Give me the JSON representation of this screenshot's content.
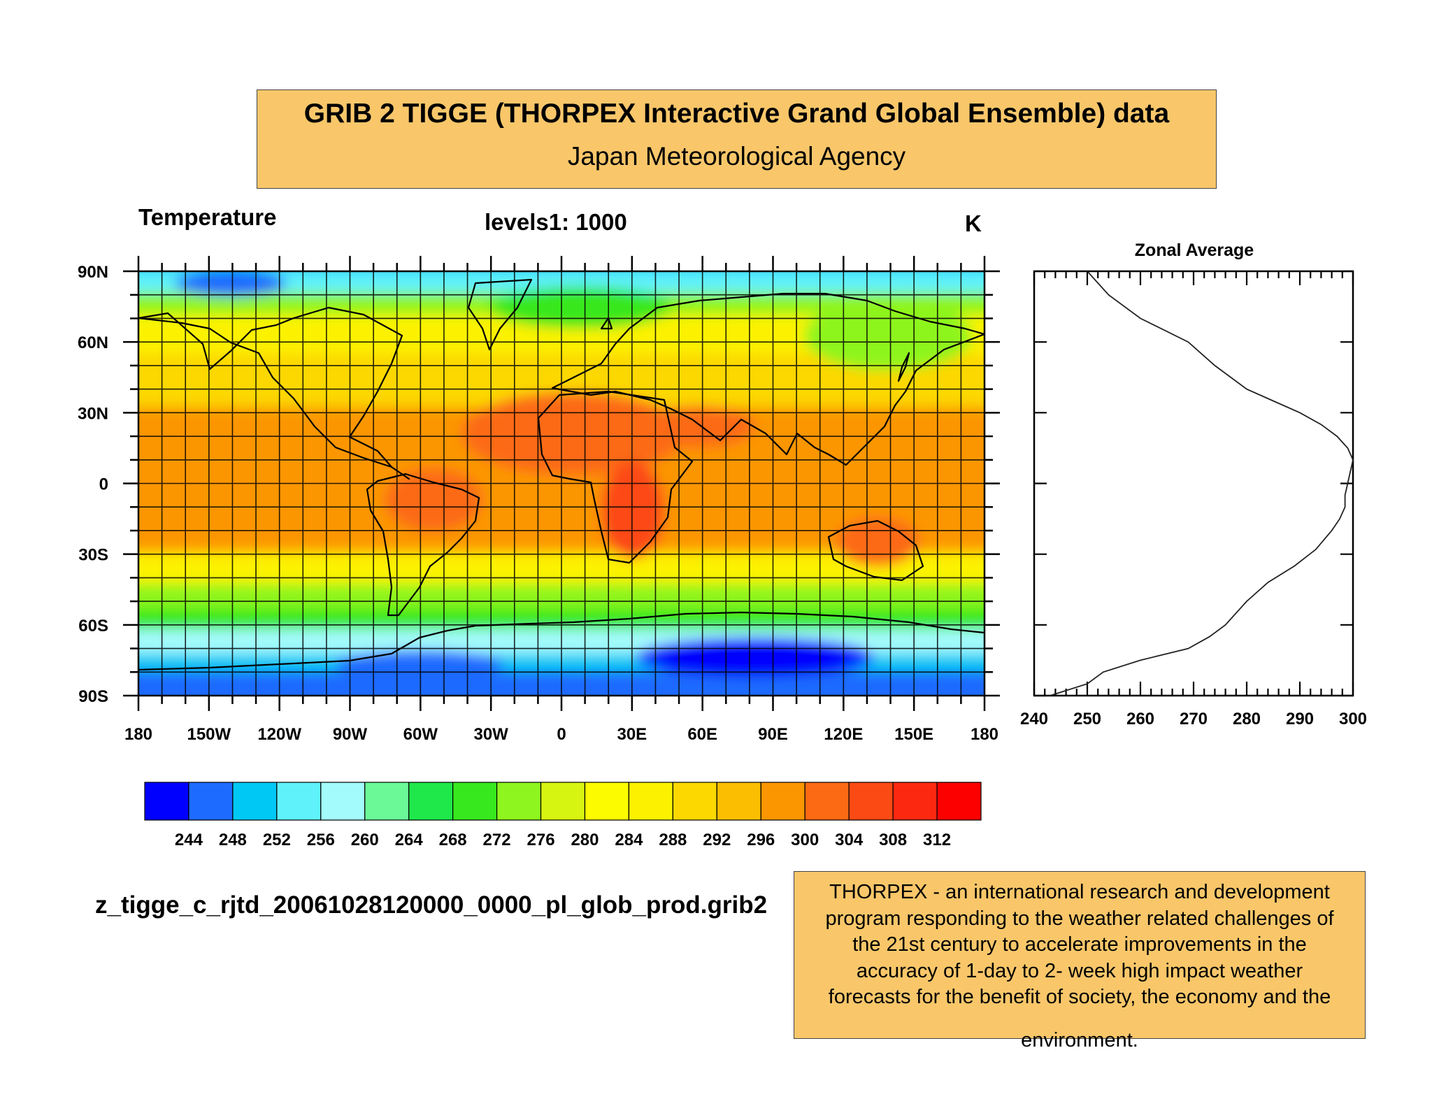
{
  "header": {
    "title": "GRIB 2 TIGGE (THORPEX Interactive Grand Global Ensemble) data",
    "subtitle": "Japan Meteorological Agency"
  },
  "map": {
    "variable_label": "Temperature",
    "level_label": "levels1: 1000",
    "unit_label": "K",
    "lat_ticks": [
      "90N",
      "60N",
      "30N",
      "0",
      "30S",
      "60S",
      "90S"
    ],
    "lon_ticks": [
      "180",
      "150W",
      "120W",
      "90W",
      "60W",
      "30W",
      "0",
      "30E",
      "60E",
      "90E",
      "120E",
      "150E",
      "180"
    ],
    "projection": "cylindrical-equidistant",
    "lon_range": [
      -180,
      180
    ],
    "lat_range": [
      -90,
      90
    ],
    "gridlines": "every 10 degrees",
    "colorbar": {
      "colors": [
        "#0000ff",
        "#1e6bff",
        "#00c8f5",
        "#5ff2fb",
        "#a3fbfb",
        "#6bf998",
        "#1ee84a",
        "#38e81e",
        "#8ef51e",
        "#d6f510",
        "#fcfb00",
        "#fcf200",
        "#fcd800",
        "#fcbe00",
        "#fc9600",
        "#fc6a14",
        "#fc4a14",
        "#fc2810",
        "#fc0000"
      ],
      "labels": [
        "244",
        "248",
        "252",
        "256",
        "260",
        "264",
        "268",
        "272",
        "276",
        "280",
        "284",
        "288",
        "292",
        "296",
        "300",
        "304",
        "308",
        "312"
      ]
    }
  },
  "chart_data": {
    "type": "line",
    "title": "Zonal Average",
    "xlabel": "",
    "ylabel": "",
    "xlim": [
      240,
      300
    ],
    "ylim": [
      -90,
      90
    ],
    "x_ticks": [
      "240",
      "250",
      "260",
      "270",
      "280",
      "290",
      "300"
    ],
    "series": [
      {
        "x": [
          243,
          250,
          253,
          260,
          269,
          273,
          276,
          280,
          284,
          289,
          293,
          296,
          297.5,
          298.5,
          298.5,
          299,
          299.5,
          300,
          299,
          297,
          294,
          290,
          285,
          280,
          274,
          269,
          260,
          254,
          250
        ],
        "y": [
          -90,
          -85,
          -80,
          -75,
          -70,
          -65,
          -60,
          -50,
          -42,
          -35,
          -28,
          -20,
          -15,
          -10,
          -5,
          0,
          5,
          10,
          15,
          20,
          25,
          30,
          35,
          40,
          50,
          60,
          70,
          80,
          90
        ]
      }
    ]
  },
  "footer": {
    "file_name": "z_tigge_c_rjtd_20061028120000_0000_pl_glob_prod.grib2",
    "info_lines": [
      "THORPEX - an international research and development",
      "program responding to the weather related challenges of",
      "the 21st century to accelerate improvements in the",
      "accuracy of 1-day to 2- week high impact weather",
      "forecasts for the benefit of society, the economy and the"
    ],
    "info_last": "environment."
  }
}
